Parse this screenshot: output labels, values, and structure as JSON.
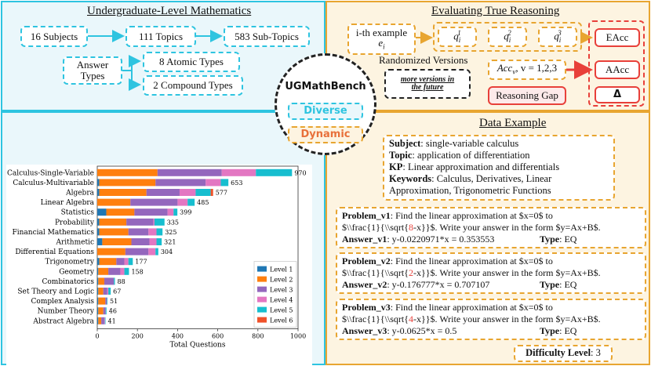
{
  "undergrad": {
    "title": "Undergraduate-Level Mathematics",
    "subjects": "16 Subjects",
    "topics": "111 Topics",
    "subtopics": "583 Sub-Topics",
    "answer_types_line1": "Answer",
    "answer_types_line2": "Types",
    "atomic": "8 Atomic Types",
    "compound": "2 Compound Types"
  },
  "reasoning": {
    "title": "Evaluating True Reasoning",
    "example_line1": "i-th example",
    "example_var": "e",
    "example_sub": "i",
    "q_base": "q",
    "q_sub": "i",
    "q1_sup": "1",
    "q2_sup": "2",
    "q3_sup": "3",
    "randomized": "Randomized Versions",
    "future_line1": "more versions in",
    "future_line2": "the future",
    "acc_base": "Acc",
    "acc_sub": "v",
    "acc_rest": ", v = 1,2,3",
    "gap": "Reasoning Gap",
    "eacc": "EAcc",
    "aacc": "AAcc",
    "delta": "Δ"
  },
  "center": {
    "title": "UGMathBench",
    "diverse": "Diverse",
    "dynamic": "Dynamic"
  },
  "colors": {
    "cyan": "#2ec4e0",
    "orange": "#e8a530",
    "red": "#e8403a",
    "level1": "#1f77b4",
    "level2": "#ff7f0e",
    "level3": "#9467bd",
    "level4": "#e377c2",
    "level5": "#17becf",
    "level6": "#f0522a"
  },
  "chart_data": {
    "type": "bar",
    "orientation": "horizontal",
    "stacked": true,
    "xlabel": "Total Questions",
    "xlim": [
      0,
      1000
    ],
    "xticks": [
      0,
      200,
      400,
      600,
      800,
      1000
    ],
    "categories": [
      "Calculus-Single-Variable",
      "Calculus-Multivariable",
      "Algebra",
      "Linear Algebra",
      "Statistics",
      "Probability",
      "Financial Mathematics",
      "Arithmetic",
      "Differential Equations",
      "Trigonometry",
      "Geometry",
      "Combinatorics",
      "Set Theory and Logic",
      "Complex Analysis",
      "Number Theory",
      "Abstract Algebra"
    ],
    "totals": [
      970,
      653,
      577,
      485,
      399,
      335,
      325,
      321,
      304,
      177,
      158,
      88,
      67,
      51,
      46,
      41
    ],
    "legend_title": "",
    "series": [
      {
        "name": "Level 1",
        "values": [
          0,
          10,
          10,
          0,
          45,
          10,
          10,
          25,
          0,
          10,
          5,
          5,
          5,
          5,
          5,
          5
        ]
      },
      {
        "name": "Level 2",
        "values": [
          300,
          280,
          235,
          165,
          140,
          135,
          145,
          145,
          140,
          85,
          50,
          30,
          25,
          35,
          25,
          15
        ]
      },
      {
        "name": "Level 3",
        "values": [
          320,
          250,
          165,
          235,
          165,
          135,
          100,
          90,
          115,
          40,
          60,
          48,
          20,
          8,
          12,
          15
        ]
      },
      {
        "name": "Level 4",
        "values": [
          170,
          75,
          80,
          50,
          30,
          5,
          40,
          35,
          35,
          20,
          20,
          0,
          5,
          0,
          0,
          3
        ]
      },
      {
        "name": "Level 5",
        "values": [
          180,
          38,
          75,
          35,
          19,
          50,
          30,
          26,
          14,
          22,
          23,
          5,
          12,
          3,
          4,
          3
        ]
      },
      {
        "name": "Level 6",
        "values": [
          0,
          0,
          12,
          0,
          0,
          0,
          0,
          0,
          0,
          0,
          0,
          0,
          0,
          0,
          0,
          0
        ]
      }
    ]
  },
  "example": {
    "title": "Data Example",
    "subject_label": "Subject",
    "subject": ": single-variable calculus",
    "topic_label": "Topic",
    "topic": ": application of differentiation",
    "kp_label": "KP",
    "kp": ": Linear approximation and differentials",
    "kw_label": "Keywords",
    "kw_line1": ": Calculus, Derivatives, Linear",
    "kw_line2": "Approximation, Trigonometric Functions",
    "problems": [
      {
        "label": "Problem_v1",
        "line1": ": Find the linear approximation at $x=0$ to",
        "pre": "$\\\\frac{1}{\\\\sqrt{",
        "num": "8",
        "post": "-x}}$. Write your answer in the form $y=Ax+B$.",
        "ans_label": "Answer_v1",
        "ans": ": y-0.0220971*x = 0.353553",
        "type_label": "Type",
        "type": ": EQ"
      },
      {
        "label": "Problem_v2",
        "line1": ": Find the linear approximation at $x=0$ to",
        "pre": "$\\\\frac{1}{\\\\sqrt{",
        "num": "2",
        "post": "-x}}$. Write your answer in the form $y=Ax+B$.",
        "ans_label": "Answer_v2",
        "ans": ": y-0.176777*x = 0.707107",
        "type_label": "Type",
        "type": ": EQ"
      },
      {
        "label": "Problem_v3",
        "line1": ": Find the linear approximation at $x=0$ to",
        "pre": "$\\\\frac{1}{\\\\sqrt{",
        "num": "4",
        "post": "-x}}$. Write your answer in the form $y=Ax+B$.",
        "ans_label": "Answer_v3",
        "ans": ": y-0.0625*x = 0.5",
        "type_label": "Type",
        "type": ": EQ"
      }
    ],
    "difficulty_label": "Difficulty Level",
    "difficulty": ": 3"
  }
}
